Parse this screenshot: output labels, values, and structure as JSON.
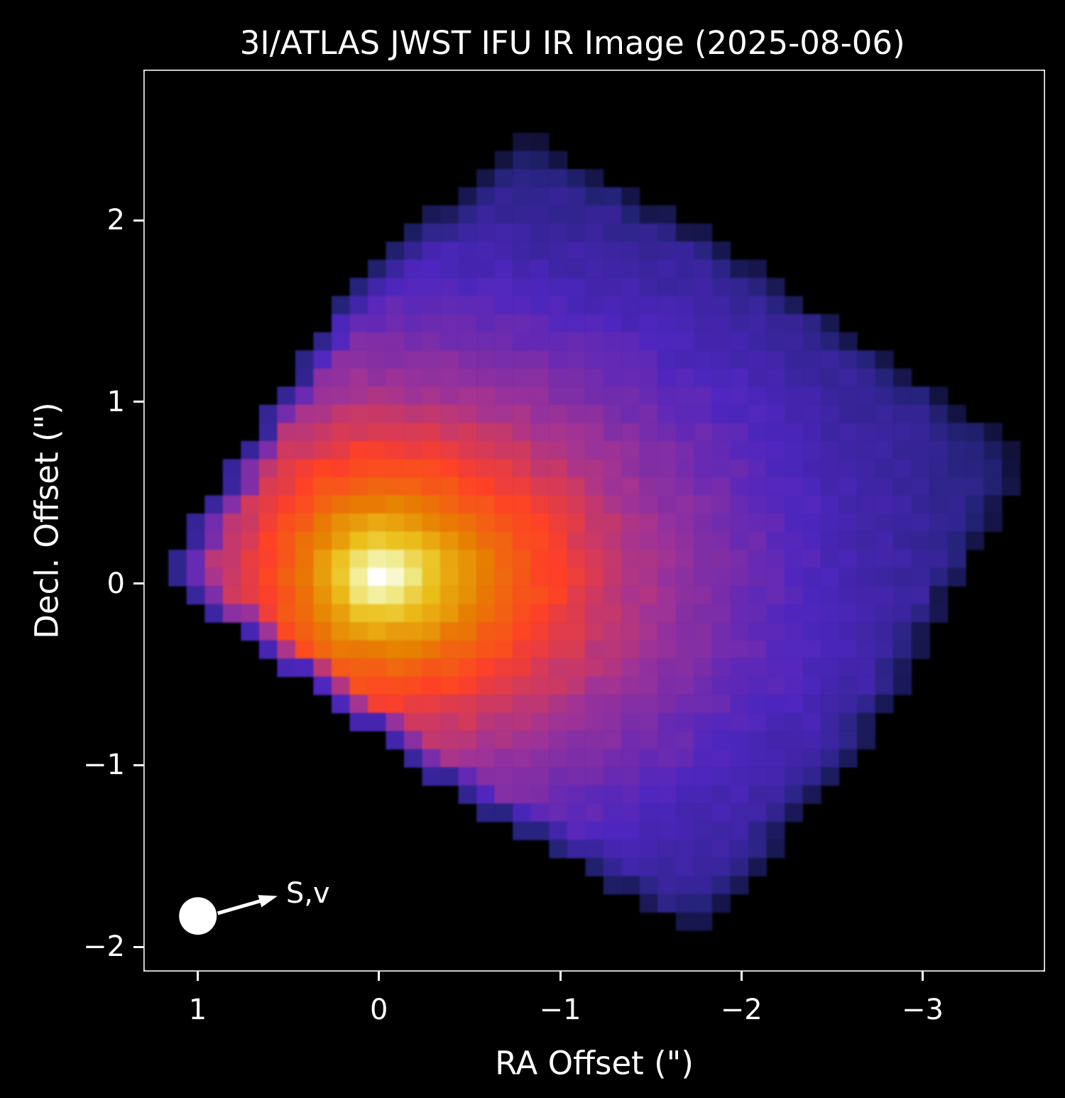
{
  "figure": {
    "background": "#000000",
    "foreground": "#ffffff"
  },
  "title": "3I/ATLAS JWST IFU IR Image (2025-08-06)",
  "chart_data": {
    "type": "heatmap",
    "title": "3I/ATLAS JWST IFU IR Image (2025-08-06)",
    "xlabel": "RA Offset (\")",
    "ylabel": "Decl. Offset (\")",
    "x_ticks": [
      1,
      0,
      -1,
      -2,
      -3
    ],
    "y_ticks": [
      2,
      1,
      0,
      -1,
      -2
    ],
    "x_range_left_to_right": [
      1.29,
      -3.67
    ],
    "y_range_top_to_bottom": [
      2.82,
      -2.13
    ],
    "grid": false,
    "pixel_scale_arcsec": 0.1,
    "source_center": {
      "ra": 0.01,
      "decl": 0.035
    },
    "intensity_model": {
      "A": 0.537,
      "B": 0.304,
      "C": 0.157,
      "stretch_left": 1.58,
      "stretch_right": 1.0,
      "stretch_vertical": 1.47,
      "noise_amp": 0.03,
      "rim_outer_factor": 0.5,
      "rim_inner_factor": 0.8,
      "rim_outer_shrink": 0.96,
      "rim_inner_shrink": 0.92
    },
    "colormap": {
      "name": "CMRmap-like (black-blue-purple-red-orange-yellow-white)",
      "stops": [
        [
          0.0,
          [
            0,
            0,
            0
          ]
        ],
        [
          0.125,
          [
            35,
            35,
            119
          ]
        ],
        [
          0.25,
          [
            78,
            38,
            191
          ]
        ],
        [
          0.375,
          [
            160,
            51,
            150
          ]
        ],
        [
          0.5,
          [
            255,
            64,
            38
          ]
        ],
        [
          0.625,
          [
            230,
            128,
            0
          ]
        ],
        [
          0.75,
          [
            235,
            191,
            26
          ]
        ],
        [
          0.875,
          [
            240,
            236,
            140
          ]
        ],
        [
          1.0,
          [
            255,
            255,
            255
          ]
        ]
      ]
    },
    "footprint_polygon_ra_decl": [
      [
        -0.8,
        2.49
      ],
      [
        -1.83,
        1.91
      ],
      [
        -3.6,
        0.7
      ],
      [
        -2.77,
        -0.78
      ],
      [
        -1.77,
        -1.96
      ],
      [
        -0.43,
        -1.17
      ],
      [
        1.2,
        0.04
      ],
      [
        0.17,
        1.64
      ]
    ],
    "annotation": {
      "label": "S,v",
      "circle": {
        "ra": 1.0,
        "decl": -1.83,
        "radius_arcsec": 0.105
      },
      "arrow_tail": {
        "ra": 0.89,
        "decl": -1.815
      },
      "arrow_tip": {
        "ra": 0.56,
        "decl": -1.72
      }
    }
  }
}
